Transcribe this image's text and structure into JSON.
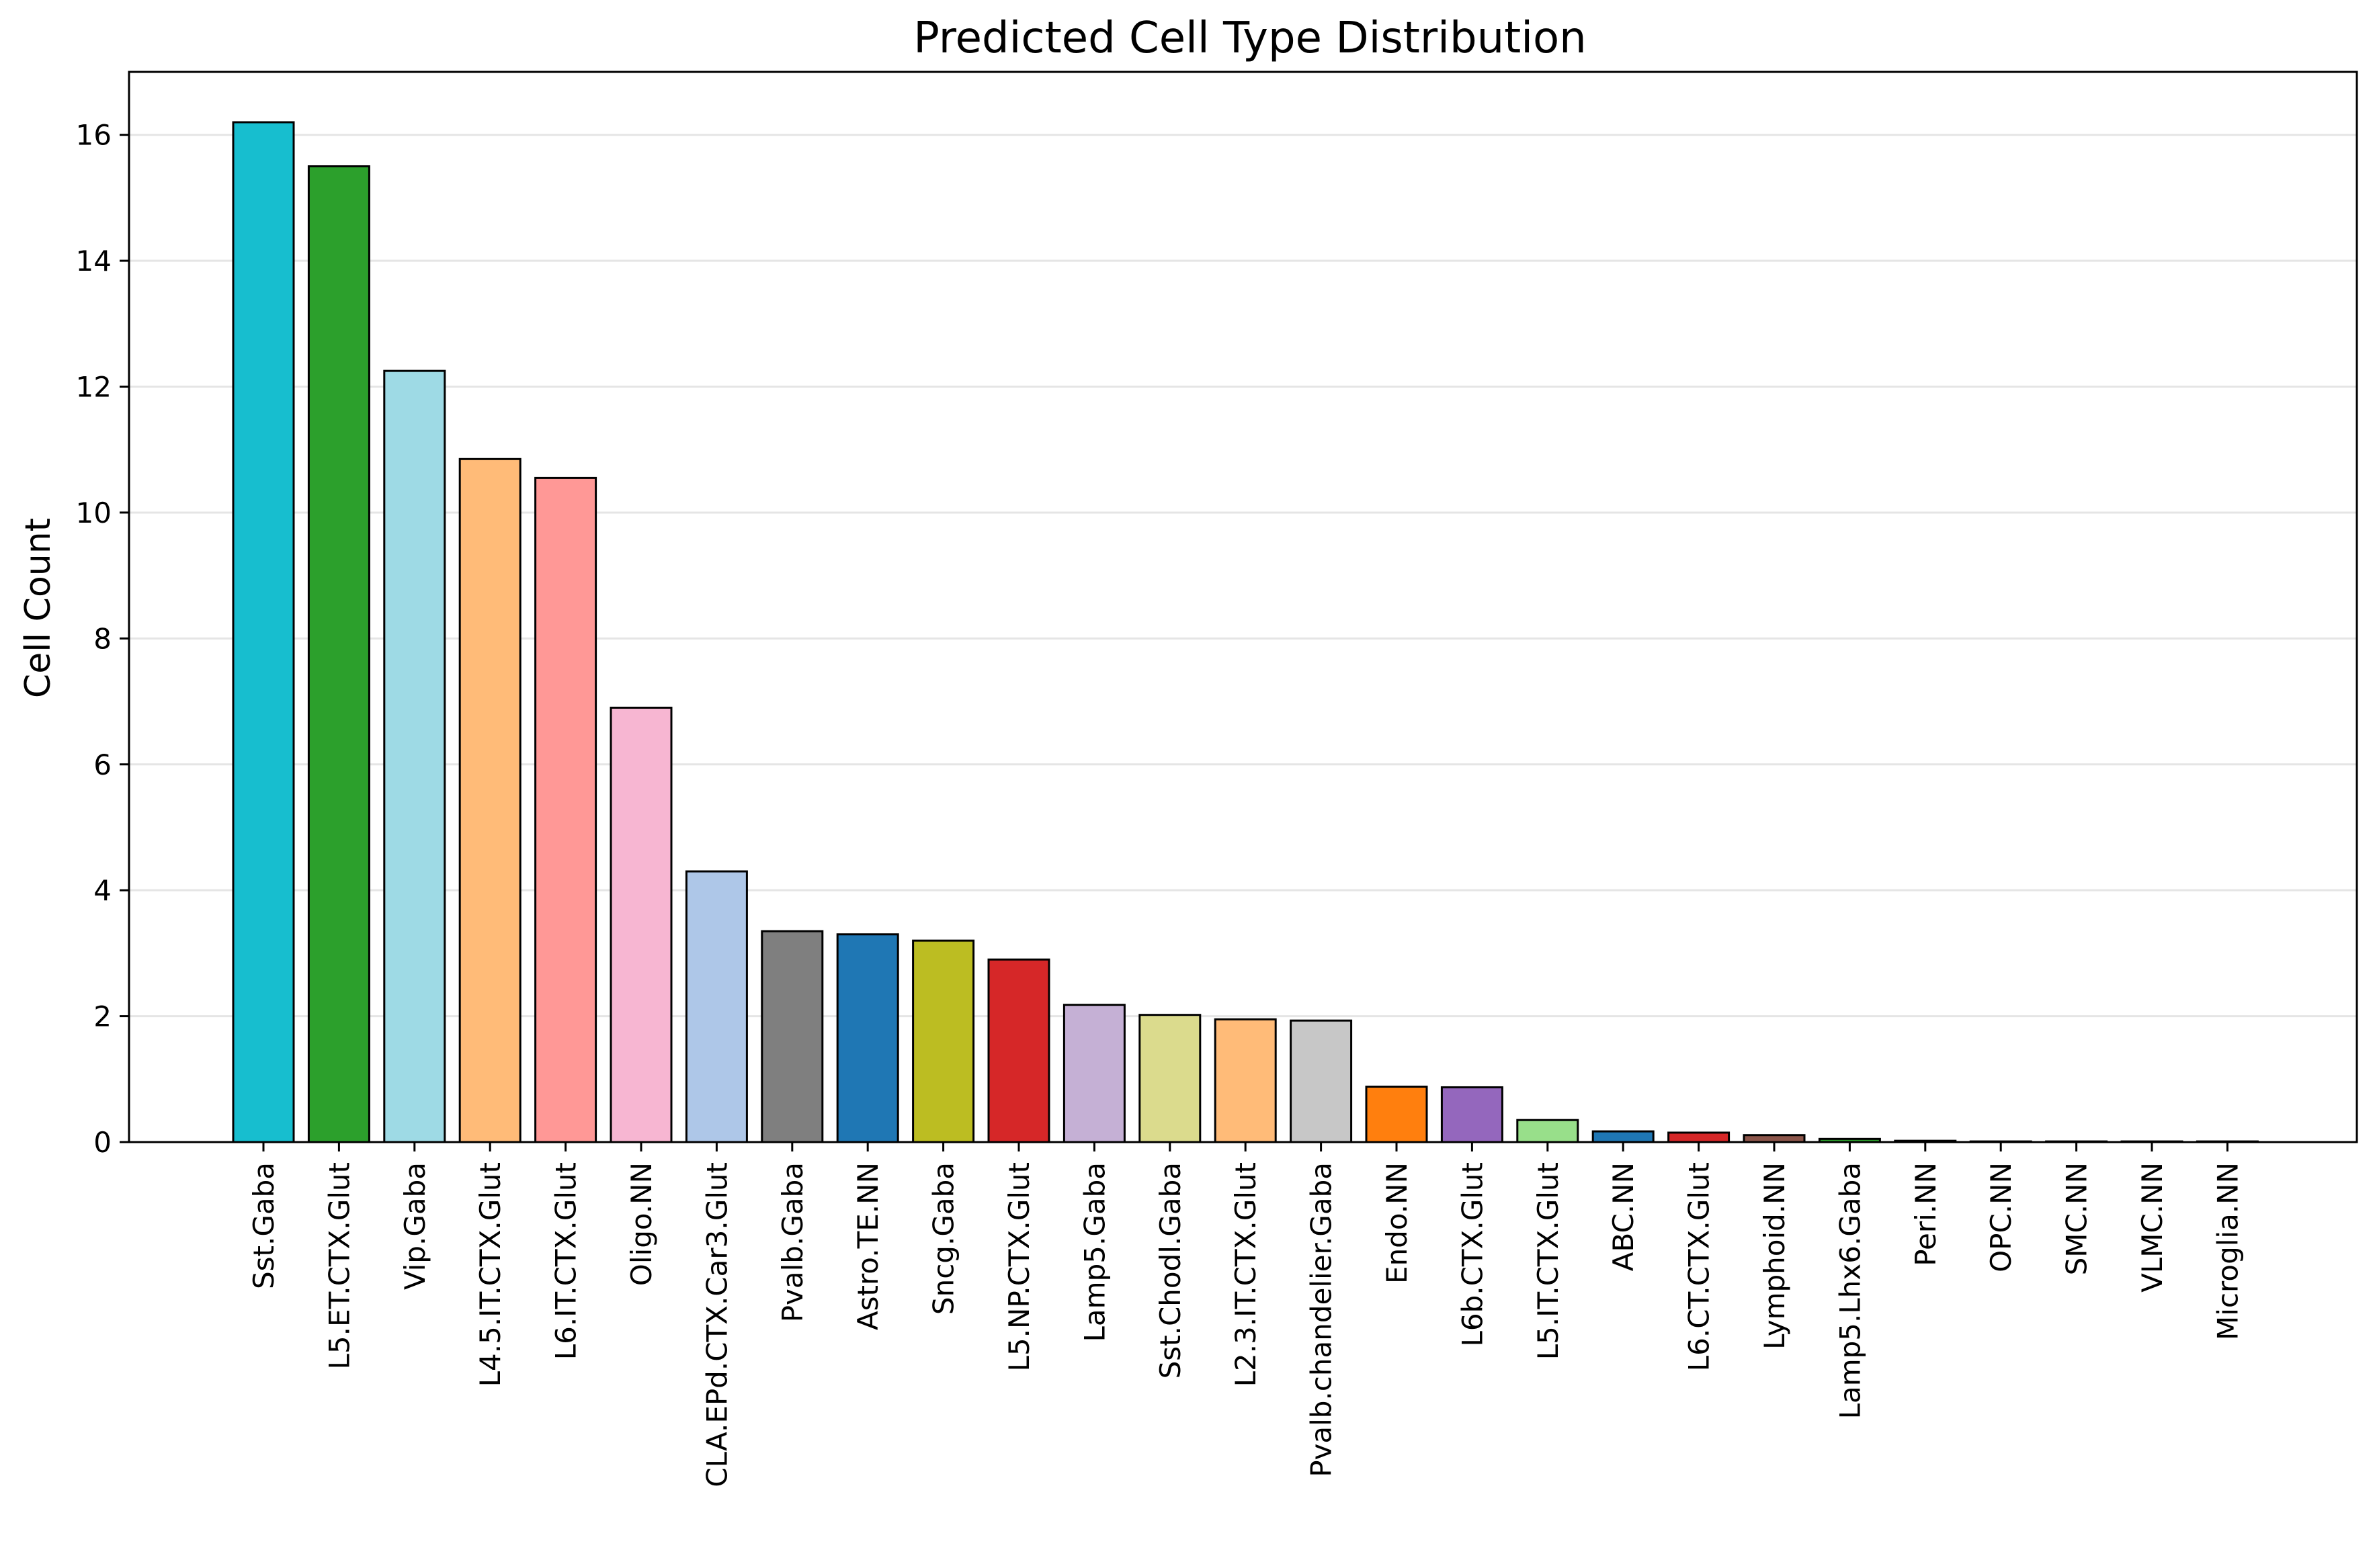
{
  "chart_data": {
    "type": "bar",
    "title": "Predicted Cell Type Distribution",
    "xlabel": "",
    "ylabel": "Cell Count",
    "ylim": [
      0,
      17
    ],
    "yticks": [
      0,
      2,
      4,
      6,
      8,
      10,
      12,
      14,
      16
    ],
    "grid": "y",
    "categories": [
      "Sst.Gaba",
      "L5.ET.CTX.Glut",
      "Vip.Gaba",
      "L4.5.IT.CTX.Glut",
      "L6.IT.CTX.Glut",
      "Oligo.NN",
      "CLA.EPd.CTX.Car3.Glut",
      "Pvalb.Gaba",
      "Astro.TE.NN",
      "Sncg.Gaba",
      "L5.NP.CTX.Glut",
      "Lamp5.Gaba",
      "Sst.Chodl.Gaba",
      "L2.3.IT.CTX.Glut",
      "Pvalb.chandelier.Gaba",
      "Endo.NN",
      "L6b.CTX.Glut",
      "L5.IT.CTX.Glut",
      "ABC.NN",
      "L6.CT.CTX.Glut",
      "Lymphoid.NN",
      "Lamp5.Lhx6.Gaba",
      "Peri.NN",
      "OPC.NN",
      "SMC.NN",
      "VLMC.NN",
      "Microglia.NN"
    ],
    "values": [
      16.2,
      15.5,
      12.25,
      10.85,
      10.55,
      6.9,
      4.3,
      3.35,
      3.3,
      3.2,
      2.9,
      2.18,
      2.02,
      1.95,
      1.93,
      0.88,
      0.87,
      0.35,
      0.17,
      0.15,
      0.11,
      0.05,
      0.02,
      0.01,
      0.01,
      0.01,
      0.01
    ],
    "colors": [
      "#17becf",
      "#2ca02c",
      "#9edae5",
      "#ffbb78",
      "#ff9896",
      "#f7b6d2",
      "#aec7e8",
      "#7f7f7f",
      "#1f77b4",
      "#bcbd22",
      "#d62728",
      "#c5b0d5",
      "#dbdb8d",
      "#ffbb78",
      "#c7c7c7",
      "#ff7f0e",
      "#9467bd",
      "#98df8a",
      "#1f77b4",
      "#d62728",
      "#8c564b",
      "#2ca02c",
      "#9467bd",
      "#e377c2",
      "#7f7f7f",
      "#bcbd22",
      "#17becf"
    ],
    "edge_color": "#000000",
    "grid_color": "#e5e5e5"
  }
}
